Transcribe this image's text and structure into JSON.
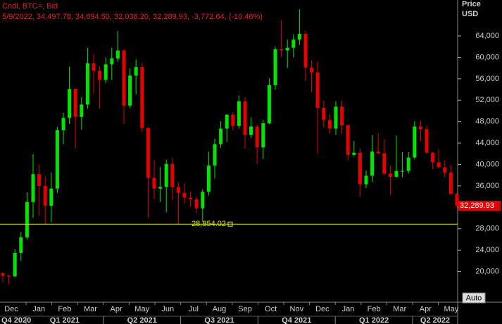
{
  "chart_data": {
    "type": "candlestick",
    "header": [
      "Cndl, BTC=, Bid",
      "5/9/2022, 34,497.78, 34,694.50, 32,036.20, 32,289.93, -3,772.64, (-10.46%)"
    ],
    "y_axis_label": [
      "Price",
      "USD"
    ],
    "up_color": "#00e600",
    "down_color": "#e60000",
    "open": [
      19700,
      19200,
      19100,
      23500,
      26400,
      33000,
      38200,
      36000,
      32300,
      35500,
      46400,
      48700,
      54100,
      48900,
      51200,
      58900,
      57500,
      55800,
      58700,
      59800,
      61300,
      51000,
      56600,
      58200,
      46800,
      37500,
      35500,
      35800,
      40100,
      35800,
      34700,
      33800,
      33500,
      31800,
      34900,
      39800,
      43800,
      46700,
      49300,
      47200,
      51800,
      45500,
      47100,
      43200,
      47700,
      54800,
      61500,
      61300,
      61800,
      63300,
      64400,
      58100,
      57200,
      50600,
      48300,
      46700,
      50800,
      47300,
      41800,
      42200,
      36300,
      37900,
      42400,
      42100,
      38300,
      37700,
      38800,
      38800,
      41300,
      47100,
      46600,
      42200,
      40400,
      39500,
      38500,
      34497.78
    ],
    "high": [
      19900,
      19400,
      24200,
      27400,
      34800,
      41900,
      40000,
      37800,
      38500,
      47000,
      49700,
      58300,
      54200,
      52600,
      61800,
      60600,
      58300,
      60000,
      61800,
      64900,
      61500,
      57900,
      59600,
      58900,
      47000,
      40800,
      39500,
      40900,
      41300,
      36700,
      36500,
      35000,
      34000,
      35400,
      42400,
      44800,
      48100,
      49400,
      49800,
      52900,
      52600,
      48800,
      47400,
      48400,
      56100,
      62000,
      67000,
      63300,
      64300,
      69000,
      65000,
      59400,
      59200,
      51900,
      49400,
      51800,
      51900,
      47500,
      44400,
      43000,
      38900,
      45500,
      45800,
      44700,
      39800,
      45400,
      42300,
      42300,
      48100,
      48200,
      47200,
      42300,
      42900,
      40800,
      39900,
      34694.5
    ],
    "low": [
      18000,
      17600,
      19000,
      22000,
      26000,
      30000,
      30400,
      28800,
      29200,
      34700,
      43800,
      47600,
      43000,
      46500,
      50400,
      53300,
      50400,
      55200,
      55800,
      59200,
      47500,
      50500,
      53100,
      46100,
      30000,
      33500,
      33000,
      31100,
      33400,
      28800,
      32700,
      32100,
      31000,
      29300,
      34200,
      37400,
      43100,
      44200,
      46400,
      46700,
      43000,
      44900,
      40100,
      41000,
      47500,
      54000,
      60000,
      58000,
      60000,
      62300,
      55600,
      53500,
      42000,
      46900,
      45800,
      45500,
      45700,
      40700,
      41500,
      34000,
      35600,
      36700,
      41900,
      38000,
      34300,
      37500,
      37600,
      38300,
      41000,
      44300,
      42000,
      39200,
      39300,
      37600,
      34400,
      32036.2
    ],
    "close": [
      19200,
      19100,
      23500,
      26400,
      33000,
      38200,
      36000,
      32300,
      35500,
      46400,
      48700,
      54100,
      48900,
      51200,
      58900,
      57500,
      55800,
      58700,
      59800,
      61300,
      51000,
      56600,
      58200,
      46800,
      37500,
      35500,
      35800,
      40100,
      35800,
      34700,
      33800,
      33500,
      31800,
      34900,
      39800,
      43800,
      46700,
      49300,
      47200,
      51800,
      45500,
      47100,
      43200,
      47700,
      54800,
      61500,
      61300,
      61800,
      63300,
      64400,
      58100,
      57200,
      50600,
      48300,
      46700,
      50800,
      47300,
      41800,
      42200,
      36300,
      37900,
      42400,
      42100,
      38300,
      37700,
      38800,
      38800,
      41300,
      47100,
      46600,
      42200,
      40400,
      39500,
      38500,
      34500,
      32289.93
    ],
    "ylim": [
      14420,
      70710
    ],
    "yticks": [
      {
        "value": 20000,
        "label": "20,000"
      },
      {
        "value": 24000,
        "label": "24,000"
      },
      {
        "value": 28000,
        "label": "28,000"
      },
      {
        "value": 32000,
        "label": "32,000"
      },
      {
        "value": 36000,
        "label": "36,000"
      },
      {
        "value": 40000,
        "label": "40,000"
      },
      {
        "value": 44000,
        "label": "44,000"
      },
      {
        "value": 48000,
        "label": "48,000"
      },
      {
        "value": 52000,
        "label": "52,000"
      },
      {
        "value": 56000,
        "label": "56,000"
      },
      {
        "value": 60000,
        "label": "60,000"
      },
      {
        "value": 64000,
        "label": "64,000"
      }
    ],
    "months": [
      "Dec",
      "Jan",
      "Feb",
      "Mar",
      "Apr",
      "May",
      "Jun",
      "Jul",
      "Aug",
      "Sep",
      "Oct",
      "Nov",
      "Dec",
      "Jan",
      "Feb",
      "Mar",
      "Apr",
      "May"
    ],
    "quarters": [
      "Q4 2020",
      "Q1 2021",
      "Q2 2021",
      "Q3 2021",
      "Q4 2021",
      "Q1 2022",
      "Q2 2022"
    ],
    "last_price": {
      "value": 32289.93,
      "label": "32,289.93"
    },
    "min_line": {
      "value": 28854.02,
      "label": "28,854.02",
      "color": "#e6e600"
    },
    "button": "Auto"
  }
}
